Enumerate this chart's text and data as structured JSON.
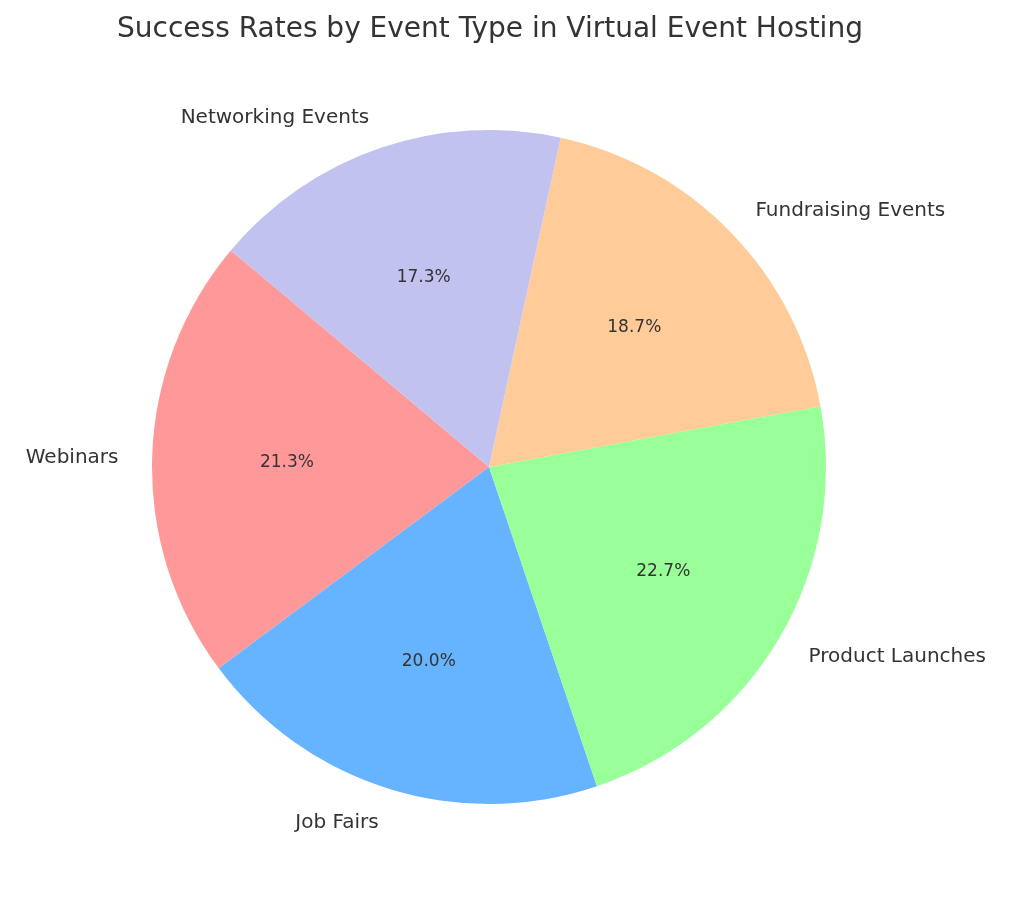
{
  "chart_data": {
    "type": "pie",
    "title": "Success Rates by Event Type in Virtual Event Hosting",
    "categories": [
      "Webinars",
      "Job Fairs",
      "Product Launches",
      "Fundraising Events",
      "Networking Events"
    ],
    "values": [
      21.3,
      20.0,
      22.7,
      18.7,
      17.3
    ],
    "colors": [
      "#ff9999",
      "#66b3ff",
      "#99ff99",
      "#ffcc99",
      "#c2c2f0"
    ],
    "value_labels": [
      "21.3%",
      "20.0%",
      "22.7%",
      "18.7%",
      "17.3%"
    ]
  }
}
